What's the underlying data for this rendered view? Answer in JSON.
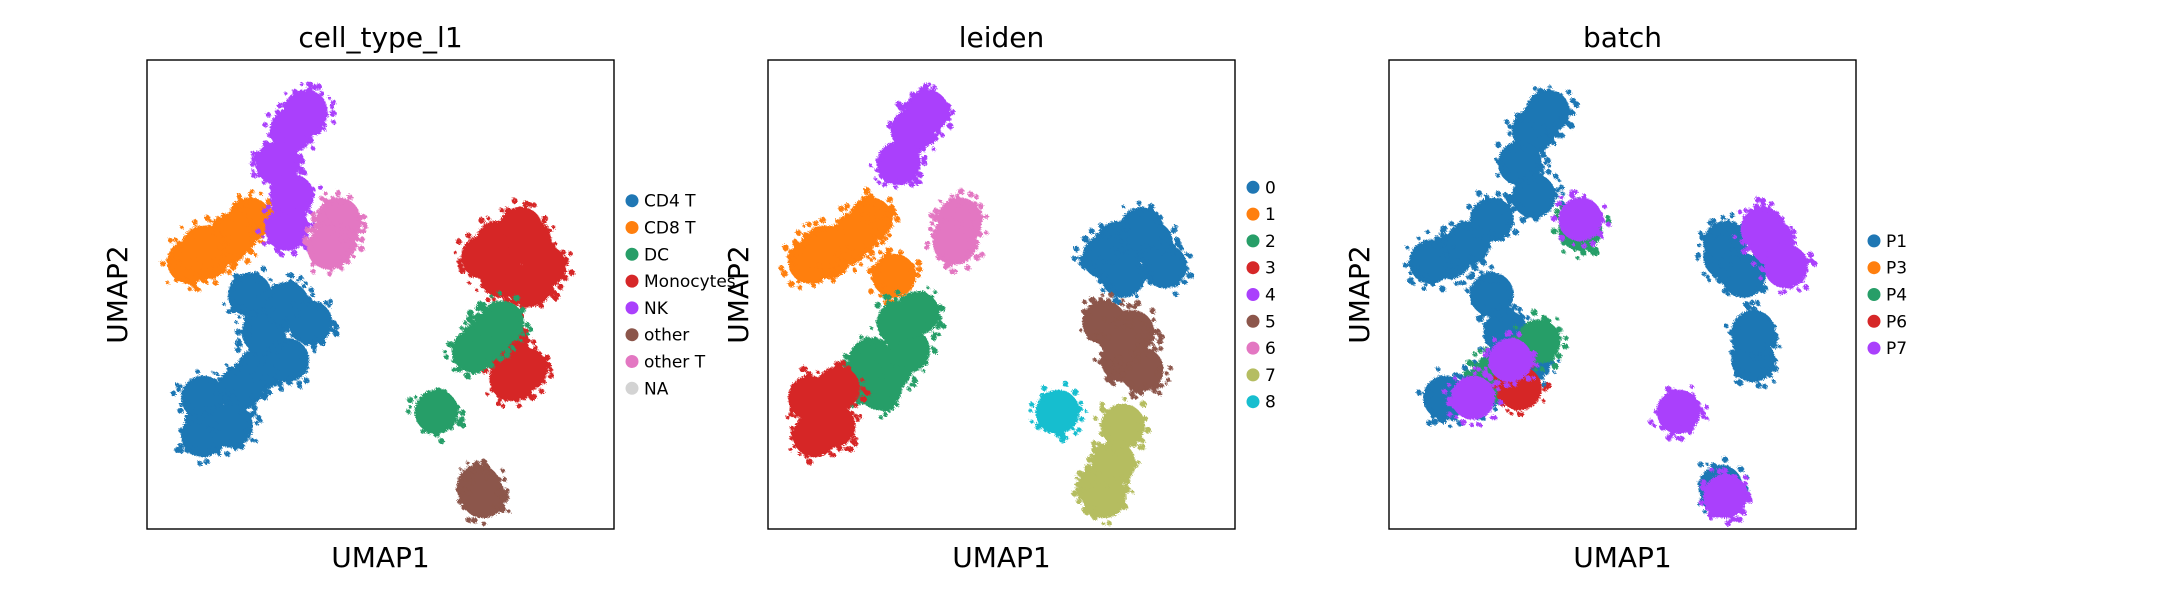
{
  "figure": {
    "background": "#ffffff"
  },
  "chart_data": [
    {
      "type": "scatter",
      "title": "cell_type_l1",
      "xlabel": "UMAP1",
      "ylabel": "UMAP2",
      "grid": false,
      "ticks": false,
      "legend": "right-outside",
      "xlim": [
        0,
        100
      ],
      "ylim": [
        0,
        100
      ],
      "categories": [
        {
          "name": "CD4 T",
          "color": "#1f77b4"
        },
        {
          "name": "CD8 T",
          "color": "#ff7f0e"
        },
        {
          "name": "DC",
          "color": "#279e68"
        },
        {
          "name": "Monocytes",
          "color": "#d62728"
        },
        {
          "name": "NK",
          "color": "#aa40fc"
        },
        {
          "name": "other",
          "color": "#8c564b"
        },
        {
          "name": "other T",
          "color": "#e377c2"
        },
        {
          "name": "NA",
          "color": "#d3d3d3"
        }
      ],
      "clusters": [
        {
          "category": "CD4 T",
          "points": [
            [
              24,
              34
            ],
            [
              20,
              30
            ],
            [
              12,
              28
            ],
            [
              30,
              36
            ],
            [
              25,
              42
            ],
            [
              22,
              50
            ],
            [
              30,
              48
            ],
            [
              35,
              44
            ],
            [
              12,
              20
            ],
            [
              18,
              22
            ]
          ]
        },
        {
          "category": "CD8 T",
          "points": [
            [
              13,
              58
            ],
            [
              9,
              57
            ],
            [
              17,
              61
            ],
            [
              22,
              66
            ],
            [
              19,
              63
            ],
            [
              12,
              60
            ]
          ]
        },
        {
          "category": "NK",
          "points": [
            [
              31,
              85
            ],
            [
              34,
              89
            ],
            [
              28,
              78
            ],
            [
              31,
              71
            ],
            [
              30,
              64
            ]
          ]
        },
        {
          "category": "other T",
          "points": [
            [
              41,
              65
            ],
            [
              41,
              66
            ],
            [
              40,
              61
            ],
            [
              39,
              60
            ]
          ]
        },
        {
          "category": "Monocytes",
          "points": [
            [
              75,
              61
            ],
            [
              82,
              61
            ],
            [
              72,
              58
            ],
            [
              85,
              56
            ],
            [
              76,
              54
            ],
            [
              80,
              64
            ],
            [
              82,
              52
            ],
            [
              78,
              36
            ],
            [
              78,
              32
            ],
            [
              81,
              34
            ],
            [
              77,
              40
            ]
          ]
        },
        {
          "category": "DC",
          "points": [
            [
              72,
              40
            ],
            [
              70,
              38
            ],
            [
              74,
              42
            ],
            [
              76,
              44
            ],
            [
              62,
              25
            ]
          ]
        },
        {
          "category": "other",
          "points": [
            [
              71,
              9
            ],
            [
              72,
              7
            ]
          ]
        }
      ]
    },
    {
      "type": "scatter",
      "title": "leiden",
      "xlabel": "UMAP1",
      "ylabel": "UMAP2",
      "grid": false,
      "ticks": false,
      "legend": "right-outside",
      "xlim": [
        0,
        100
      ],
      "ylim": [
        0,
        100
      ],
      "categories": [
        {
          "name": "0",
          "color": "#1f77b4"
        },
        {
          "name": "1",
          "color": "#ff7f0e"
        },
        {
          "name": "2",
          "color": "#279e68"
        },
        {
          "name": "3",
          "color": "#d62728"
        },
        {
          "name": "4",
          "color": "#aa40fc"
        },
        {
          "name": "5",
          "color": "#8c564b"
        },
        {
          "name": "6",
          "color": "#e377c2"
        },
        {
          "name": "7",
          "color": "#b5bd61"
        },
        {
          "name": "8",
          "color": "#17becf"
        }
      ],
      "clusters": [
        {
          "category": "0",
          "points": [
            [
              75,
              61
            ],
            [
              82,
              61
            ],
            [
              72,
              58
            ],
            [
              85,
              56
            ],
            [
              76,
              54
            ],
            [
              80,
              64
            ]
          ]
        },
        {
          "category": "1",
          "points": [
            [
              13,
              58
            ],
            [
              9,
              57
            ],
            [
              17,
              61
            ],
            [
              22,
              66
            ],
            [
              19,
              63
            ],
            [
              12,
              60
            ],
            [
              27,
              54
            ]
          ]
        },
        {
          "category": "2",
          "points": [
            [
              26,
              34
            ],
            [
              22,
              36
            ],
            [
              30,
              38
            ],
            [
              28,
              44
            ],
            [
              24,
              30
            ],
            [
              20,
              32
            ],
            [
              32,
              46
            ]
          ]
        },
        {
          "category": "3",
          "points": [
            [
              12,
              26
            ],
            [
              9,
              28
            ],
            [
              14,
              22
            ],
            [
              15,
              30
            ],
            [
              10,
              20
            ]
          ]
        },
        {
          "category": "4",
          "points": [
            [
              31,
              85
            ],
            [
              34,
              89
            ],
            [
              28,
              78
            ]
          ]
        },
        {
          "category": "5",
          "points": [
            [
              78,
              42
            ],
            [
              72,
              44
            ],
            [
              76,
              36
            ],
            [
              80,
              34
            ],
            [
              76,
              40
            ]
          ]
        },
        {
          "category": "6",
          "points": [
            [
              41,
              65
            ],
            [
              41,
              66
            ],
            [
              40,
              61
            ]
          ]
        },
        {
          "category": "7",
          "points": [
            [
              71,
              9
            ],
            [
              72,
              7
            ],
            [
              74,
              14
            ],
            [
              76,
              22
            ]
          ]
        },
        {
          "category": "8",
          "points": [
            [
              62,
              25
            ]
          ]
        }
      ]
    },
    {
      "type": "scatter",
      "title": "batch",
      "xlabel": "UMAP1",
      "ylabel": "UMAP2",
      "grid": false,
      "ticks": false,
      "legend": "right-outside",
      "xlim": [
        0,
        100
      ],
      "ylim": [
        0,
        100
      ],
      "categories": [
        {
          "name": "P1",
          "color": "#1f77b4"
        },
        {
          "name": "P3",
          "color": "#ff7f0e"
        },
        {
          "name": "P4",
          "color": "#279e68"
        },
        {
          "name": "P6",
          "color": "#d62728"
        },
        {
          "name": "P7",
          "color": "#aa40fc"
        }
      ],
      "clusters": [
        {
          "category": "P1",
          "points": [
            [
              24,
              34
            ],
            [
              20,
              30
            ],
            [
              12,
              28
            ],
            [
              30,
              36
            ],
            [
              25,
              42
            ],
            [
              22,
              50
            ],
            [
              13,
              58
            ],
            [
              9,
              57
            ],
            [
              17,
              61
            ],
            [
              22,
              66
            ],
            [
              31,
              85
            ],
            [
              34,
              89
            ],
            [
              28,
              78
            ],
            [
              31,
              71
            ],
            [
              72,
              61
            ],
            [
              72,
              58
            ],
            [
              76,
              54
            ],
            [
              78,
              36
            ],
            [
              78,
              42
            ],
            [
              71,
              9
            ]
          ]
        },
        {
          "category": "P4",
          "points": [
            [
              41,
              64
            ],
            [
              32,
              40
            ],
            [
              22,
              32
            ]
          ]
        },
        {
          "category": "P6",
          "points": [
            [
              28,
              30
            ]
          ]
        },
        {
          "category": "P7",
          "points": [
            [
              82,
              61
            ],
            [
              85,
              56
            ],
            [
              80,
              64
            ],
            [
              41,
              66
            ],
            [
              62,
              25
            ],
            [
              72,
              7
            ],
            [
              26,
              36
            ],
            [
              18,
              28
            ]
          ]
        }
      ]
    }
  ]
}
